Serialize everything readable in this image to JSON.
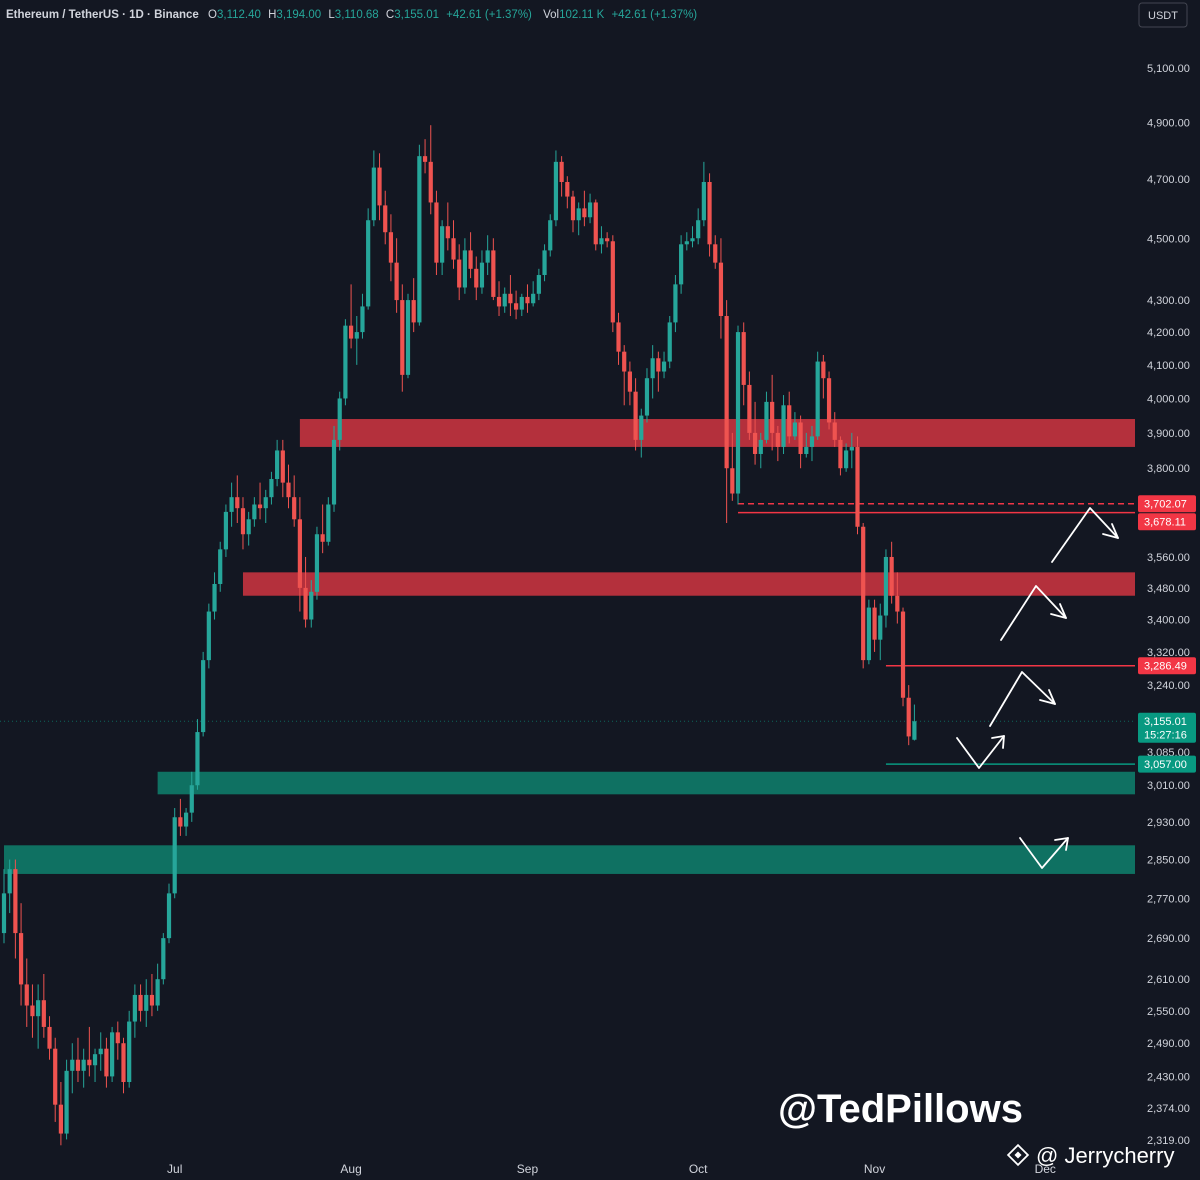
{
  "chart_data": {
    "type": "candlestick",
    "header": {
      "symbol": "Ethereum / TetherUS",
      "interval": "1D",
      "exchange": "Binance",
      "open_label": "O",
      "open": "3,112.40",
      "high_label": "H",
      "high": "3,194.00",
      "low_label": "L",
      "low": "3,110.68",
      "close_label": "C",
      "close": "3,155.01",
      "change": "+42.61 (+1.37%)",
      "vol_label": "Vol",
      "volume": "102.11 K",
      "vol_change": "+42.61 (+1.37%)"
    },
    "currency": "USDT",
    "y_scale": "log",
    "ylim": [
      2300,
      5250
    ],
    "y_ticks": [
      {
        "v": 5100,
        "label": "5,100.00"
      },
      {
        "v": 4900,
        "label": "4,900.00"
      },
      {
        "v": 4700,
        "label": "4,700.00"
      },
      {
        "v": 4500,
        "label": "4,500.00"
      },
      {
        "v": 4300,
        "label": "4,300.00"
      },
      {
        "v": 4200,
        "label": "4,200.00"
      },
      {
        "v": 4100,
        "label": "4,100.00"
      },
      {
        "v": 4000,
        "label": "4,000.00"
      },
      {
        "v": 3900,
        "label": "3,900.00"
      },
      {
        "v": 3800,
        "label": "3,800.00"
      },
      {
        "v": 3560,
        "label": "3,560.00"
      },
      {
        "v": 3480,
        "label": "3,480.00"
      },
      {
        "v": 3400,
        "label": "3,400.00"
      },
      {
        "v": 3320,
        "label": "3,320.00"
      },
      {
        "v": 3240,
        "label": "3,240.00"
      },
      {
        "v": 3085,
        "label": "3,085.00"
      },
      {
        "v": 3010,
        "label": "3,010.00"
      },
      {
        "v": 2930,
        "label": "2,930.00"
      },
      {
        "v": 2850,
        "label": "2,850.00"
      },
      {
        "v": 2770,
        "label": "2,770.00"
      },
      {
        "v": 2690,
        "label": "2,690.00"
      },
      {
        "v": 2610,
        "label": "2,610.00"
      },
      {
        "v": 2550,
        "label": "2,550.00"
      },
      {
        "v": 2490,
        "label": "2,490.00"
      },
      {
        "v": 2430,
        "label": "2,430.00"
      },
      {
        "v": 2374,
        "label": "2,374.00"
      },
      {
        "v": 2319,
        "label": "2,319.00"
      }
    ],
    "x_ticks": [
      {
        "label": "Jul",
        "day": 30
      },
      {
        "label": "Aug",
        "day": 61
      },
      {
        "label": "Sep",
        "day": 92
      },
      {
        "label": "Oct",
        "day": 122
      },
      {
        "label": "Nov",
        "day": 153
      },
      {
        "label": "Dec",
        "day": 183
      }
    ],
    "price_labels": [
      {
        "value": 3702.07,
        "text": "3,702.07",
        "color": "#f23645"
      },
      {
        "value": 3678.11,
        "text": "3,678.11",
        "color": "#f23645"
      },
      {
        "value": 3286.49,
        "text": "3,286.49",
        "color": "#f23645"
      },
      {
        "value": 3155.01,
        "text": "3,155.01",
        "sub": "15:27:16",
        "color": "#089981"
      },
      {
        "value": 3057.0,
        "text": "3,057.00",
        "color": "#089981"
      }
    ],
    "zones": [
      {
        "type": "resistance",
        "low": 3860,
        "high": 3940,
        "from_day": 52,
        "color": "#c2333f"
      },
      {
        "type": "resistance",
        "low": 3460,
        "high": 3520,
        "from_day": 42,
        "color": "#c2333f"
      },
      {
        "type": "support",
        "low": 2990,
        "high": 3040,
        "from_day": 27,
        "color": "#0f7a68"
      },
      {
        "type": "support",
        "low": 2820,
        "high": 2880,
        "from_day": 0,
        "color": "#0f7a68"
      }
    ],
    "lines": [
      {
        "value": 3702.07,
        "from_day": 129,
        "style": "dashed",
        "color": "#f23645"
      },
      {
        "value": 3678.11,
        "from_day": 129,
        "style": "solid",
        "color": "#f23645"
      },
      {
        "value": 3286.49,
        "from_day": 155,
        "style": "solid",
        "color": "#f23645"
      },
      {
        "value": 3057.0,
        "from_day": 155,
        "style": "solid",
        "color": "#089981"
      }
    ],
    "candles": [
      [
        2700,
        2830,
        2680,
        2780
      ],
      [
        2780,
        2850,
        2740,
        2830
      ],
      [
        2830,
        2850,
        2650,
        2700
      ],
      [
        2700,
        2760,
        2560,
        2600
      ],
      [
        2600,
        2650,
        2520,
        2560
      ],
      [
        2560,
        2600,
        2500,
        2540
      ],
      [
        2540,
        2600,
        2480,
        2570
      ],
      [
        2570,
        2620,
        2500,
        2520
      ],
      [
        2520,
        2540,
        2460,
        2480
      ],
      [
        2480,
        2500,
        2350,
        2380
      ],
      [
        2380,
        2420,
        2310,
        2330
      ],
      [
        2330,
        2460,
        2320,
        2440
      ],
      [
        2440,
        2490,
        2400,
        2460
      ],
      [
        2460,
        2500,
        2420,
        2440
      ],
      [
        2440,
        2480,
        2410,
        2460
      ],
      [
        2460,
        2520,
        2430,
        2450
      ],
      [
        2450,
        2480,
        2420,
        2470
      ],
      [
        2470,
        2510,
        2440,
        2480
      ],
      [
        2480,
        2500,
        2410,
        2430
      ],
      [
        2430,
        2520,
        2420,
        2510
      ],
      [
        2510,
        2530,
        2460,
        2490
      ],
      [
        2490,
        2500,
        2400,
        2420
      ],
      [
        2420,
        2550,
        2410,
        2530
      ],
      [
        2530,
        2600,
        2500,
        2580
      ],
      [
        2580,
        2600,
        2530,
        2550
      ],
      [
        2550,
        2610,
        2520,
        2580
      ],
      [
        2580,
        2620,
        2540,
        2560
      ],
      [
        2560,
        2640,
        2550,
        2610
      ],
      [
        2610,
        2700,
        2600,
        2690
      ],
      [
        2690,
        2800,
        2680,
        2780
      ],
      [
        2780,
        2960,
        2770,
        2940
      ],
      [
        2940,
        2980,
        2900,
        2920
      ],
      [
        2920,
        2960,
        2900,
        2950
      ],
      [
        2950,
        3040,
        2930,
        3010
      ],
      [
        3010,
        3160,
        3000,
        3130
      ],
      [
        3130,
        3320,
        3120,
        3300
      ],
      [
        3300,
        3440,
        3280,
        3420
      ],
      [
        3420,
        3520,
        3400,
        3490
      ],
      [
        3490,
        3600,
        3470,
        3580
      ],
      [
        3580,
        3700,
        3560,
        3680
      ],
      [
        3680,
        3760,
        3640,
        3720
      ],
      [
        3720,
        3780,
        3650,
        3690
      ],
      [
        3690,
        3720,
        3580,
        3620
      ],
      [
        3620,
        3680,
        3590,
        3660
      ],
      [
        3660,
        3720,
        3640,
        3700
      ],
      [
        3700,
        3760,
        3660,
        3690
      ],
      [
        3690,
        3740,
        3650,
        3720
      ],
      [
        3720,
        3790,
        3700,
        3770
      ],
      [
        3770,
        3880,
        3750,
        3850
      ],
      [
        3850,
        3880,
        3720,
        3760
      ],
      [
        3760,
        3810,
        3690,
        3720
      ],
      [
        3720,
        3780,
        3640,
        3660
      ],
      [
        3660,
        3720,
        3420,
        3480
      ],
      [
        3480,
        3560,
        3380,
        3400
      ],
      [
        3400,
        3500,
        3380,
        3470
      ],
      [
        3470,
        3640,
        3450,
        3620
      ],
      [
        3620,
        3700,
        3570,
        3600
      ],
      [
        3600,
        3720,
        3590,
        3700
      ],
      [
        3700,
        3920,
        3680,
        3880
      ],
      [
        3880,
        4020,
        3850,
        4000
      ],
      [
        4000,
        4240,
        3980,
        4220
      ],
      [
        4220,
        4350,
        4150,
        4180
      ],
      [
        4180,
        4250,
        4100,
        4200
      ],
      [
        4200,
        4320,
        4180,
        4280
      ],
      [
        4280,
        4600,
        4270,
        4560
      ],
      [
        4560,
        4800,
        4540,
        4740
      ],
      [
        4740,
        4790,
        4560,
        4610
      ],
      [
        4610,
        4660,
        4480,
        4520
      ],
      [
        4520,
        4580,
        4360,
        4420
      ],
      [
        4420,
        4500,
        4260,
        4300
      ],
      [
        4300,
        4350,
        4020,
        4070
      ],
      [
        4070,
        4320,
        4060,
        4300
      ],
      [
        4300,
        4370,
        4200,
        4230
      ],
      [
        4230,
        4820,
        4220,
        4780
      ],
      [
        4780,
        4840,
        4720,
        4760
      ],
      [
        4760,
        4890,
        4580,
        4620
      ],
      [
        4620,
        4660,
        4380,
        4420
      ],
      [
        4420,
        4560,
        4380,
        4540
      ],
      [
        4540,
        4620,
        4460,
        4500
      ],
      [
        4500,
        4560,
        4400,
        4430
      ],
      [
        4430,
        4480,
        4300,
        4340
      ],
      [
        4340,
        4500,
        4320,
        4460
      ],
      [
        4460,
        4520,
        4370,
        4400
      ],
      [
        4400,
        4440,
        4300,
        4340
      ],
      [
        4340,
        4460,
        4320,
        4420
      ],
      [
        4420,
        4510,
        4380,
        4460
      ],
      [
        4460,
        4500,
        4300,
        4310
      ],
      [
        4310,
        4360,
        4250,
        4280
      ],
      [
        4280,
        4340,
        4260,
        4320
      ],
      [
        4320,
        4380,
        4250,
        4290
      ],
      [
        4290,
        4330,
        4240,
        4270
      ],
      [
        4270,
        4320,
        4250,
        4310
      ],
      [
        4310,
        4350,
        4260,
        4290
      ],
      [
        4290,
        4360,
        4280,
        4320
      ],
      [
        4320,
        4400,
        4300,
        4380
      ],
      [
        4380,
        4480,
        4360,
        4460
      ],
      [
        4460,
        4580,
        4440,
        4560
      ],
      [
        4560,
        4800,
        4540,
        4760
      ],
      [
        4760,
        4780,
        4640,
        4690
      ],
      [
        4690,
        4710,
        4600,
        4640
      ],
      [
        4640,
        4660,
        4520,
        4560
      ],
      [
        4560,
        4620,
        4510,
        4600
      ],
      [
        4600,
        4660,
        4540,
        4570
      ],
      [
        4570,
        4650,
        4550,
        4620
      ],
      [
        4620,
        4630,
        4460,
        4480
      ],
      [
        4480,
        4540,
        4450,
        4500
      ],
      [
        4500,
        4520,
        4470,
        4490
      ],
      [
        4490,
        4510,
        4200,
        4230
      ],
      [
        4230,
        4260,
        4100,
        4140
      ],
      [
        4140,
        4160,
        3980,
        4080
      ],
      [
        4080,
        4110,
        3980,
        4020
      ],
      [
        4020,
        4060,
        3850,
        3880
      ],
      [
        3880,
        3970,
        3830,
        3950
      ],
      [
        3950,
        4090,
        3930,
        4060
      ],
      [
        4060,
        4160,
        4000,
        4120
      ],
      [
        4120,
        4140,
        4020,
        4080
      ],
      [
        4080,
        4140,
        4060,
        4110
      ],
      [
        4110,
        4250,
        4090,
        4230
      ],
      [
        4230,
        4380,
        4200,
        4350
      ],
      [
        4350,
        4510,
        4320,
        4480
      ],
      [
        4480,
        4520,
        4460,
        4490
      ],
      [
        4490,
        4540,
        4470,
        4500
      ],
      [
        4500,
        4600,
        4480,
        4560
      ],
      [
        4560,
        4760,
        4540,
        4690
      ],
      [
        4690,
        4720,
        4440,
        4480
      ],
      [
        4480,
        4510,
        4400,
        4420
      ],
      [
        4420,
        4500,
        4180,
        4250
      ],
      [
        4250,
        4300,
        3650,
        3800
      ],
      [
        3800,
        3900,
        3710,
        3730
      ],
      [
        3730,
        4220,
        3700,
        4200
      ],
      [
        4200,
        4230,
        3980,
        4040
      ],
      [
        4040,
        4080,
        3880,
        3900
      ],
      [
        3900,
        3990,
        3810,
        3840
      ],
      [
        3840,
        3900,
        3800,
        3880
      ],
      [
        3880,
        4020,
        3870,
        3990
      ],
      [
        3990,
        4070,
        3850,
        3900
      ],
      [
        3900,
        3920,
        3820,
        3860
      ],
      [
        3860,
        4010,
        3840,
        3980
      ],
      [
        3980,
        4020,
        3870,
        3890
      ],
      [
        3890,
        3960,
        3880,
        3930
      ],
      [
        3930,
        3950,
        3800,
        3840
      ],
      [
        3840,
        3900,
        3830,
        3860
      ],
      [
        3860,
        3920,
        3820,
        3890
      ],
      [
        3890,
        4140,
        3880,
        4110
      ],
      [
        4110,
        4130,
        4000,
        4060
      ],
      [
        4060,
        4080,
        3910,
        3930
      ],
      [
        3930,
        3960,
        3860,
        3880
      ],
      [
        3880,
        3890,
        3780,
        3800
      ],
      [
        3800,
        3870,
        3790,
        3850
      ],
      [
        3850,
        3900,
        3800,
        3860
      ],
      [
        3860,
        3890,
        3620,
        3640
      ],
      [
        3640,
        3650,
        3280,
        3300
      ],
      [
        3300,
        3450,
        3290,
        3430
      ],
      [
        3430,
        3450,
        3320,
        3350
      ],
      [
        3350,
        3440,
        3300,
        3410
      ],
      [
        3410,
        3580,
        3380,
        3560
      ],
      [
        3560,
        3600,
        3440,
        3460
      ],
      [
        3460,
        3520,
        3390,
        3420
      ],
      [
        3420,
        3430,
        3190,
        3210
      ],
      [
        3210,
        3240,
        3100,
        3120
      ],
      [
        3112.4,
        3194,
        3110.68,
        3155.01
      ]
    ],
    "annotations": [
      "@TedPillows",
      "@ Jerrycherry"
    ]
  }
}
